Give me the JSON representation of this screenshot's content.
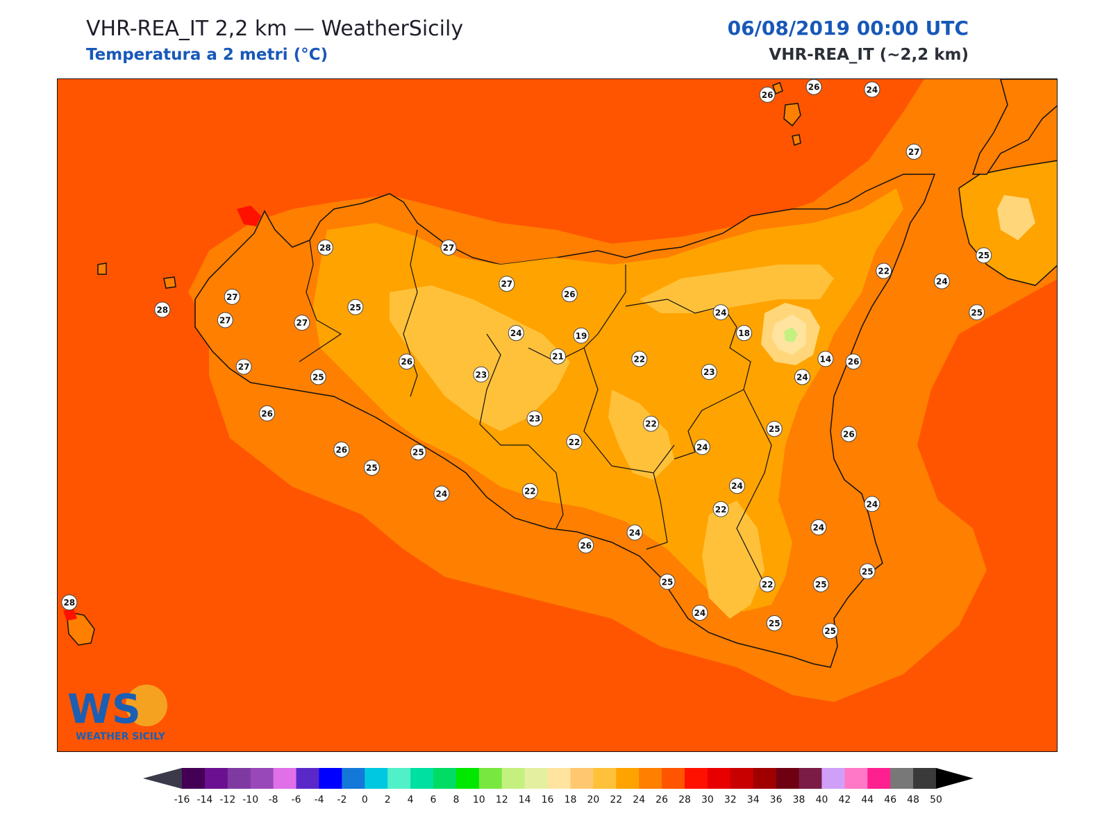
{
  "header": {
    "title": "VHR-REA_IT 2,2 km — WeatherSicily",
    "subtitle": "Temperatura a 2 metri (°C)",
    "datetime": "06/08/2019 00:00 UTC",
    "model": "VHR-REA_IT (~2,2 km)"
  },
  "logo": {
    "letters": "WS",
    "caption": "WEATHER SICILY"
  },
  "colors": {
    "sea": "#ff5500",
    "land_base": "#ff7f00",
    "t22_24": "#ffa300",
    "t20_22": "#ffc13a",
    "t18_20": "#ffd77a",
    "t16_18": "#ffe4a0",
    "hot_spots": "#ff1100",
    "border": "#111111"
  },
  "stations": [
    {
      "v": "26",
      "lon": 14.95,
      "lat": 38.79
    },
    {
      "v": "26",
      "lon": 15.15,
      "lat": 38.82
    },
    {
      "v": "24",
      "lon": 15.4,
      "lat": 38.81
    },
    {
      "v": "27",
      "lon": 15.58,
      "lat": 38.57
    },
    {
      "v": "28",
      "lon": 13.05,
      "lat": 38.2
    },
    {
      "v": "27",
      "lon": 13.58,
      "lat": 38.2
    },
    {
      "v": "27",
      "lon": 13.83,
      "lat": 38.06
    },
    {
      "v": "26",
      "lon": 14.1,
      "lat": 38.02
    },
    {
      "v": "24",
      "lon": 14.75,
      "lat": 37.95
    },
    {
      "v": "22",
      "lon": 15.45,
      "lat": 38.11
    },
    {
      "v": "24",
      "lon": 15.7,
      "lat": 38.07
    },
    {
      "v": "25",
      "lon": 15.88,
      "lat": 38.17
    },
    {
      "v": "25",
      "lon": 15.85,
      "lat": 37.95
    },
    {
      "v": "28",
      "lon": 12.35,
      "lat": 37.96
    },
    {
      "v": "27",
      "lon": 12.65,
      "lat": 38.01
    },
    {
      "v": "27",
      "lon": 12.62,
      "lat": 37.92
    },
    {
      "v": "27",
      "lon": 12.95,
      "lat": 37.91
    },
    {
      "v": "25",
      "lon": 13.18,
      "lat": 37.97
    },
    {
      "v": "24",
      "lon": 13.87,
      "lat": 37.87
    },
    {
      "v": "19",
      "lon": 14.15,
      "lat": 37.86
    },
    {
      "v": "18",
      "lon": 14.85,
      "lat": 37.87
    },
    {
      "v": "27",
      "lon": 12.7,
      "lat": 37.74
    },
    {
      "v": "25",
      "lon": 13.02,
      "lat": 37.7
    },
    {
      "v": "26",
      "lon": 13.4,
      "lat": 37.76
    },
    {
      "v": "23",
      "lon": 13.72,
      "lat": 37.71
    },
    {
      "v": "21",
      "lon": 14.05,
      "lat": 37.78
    },
    {
      "v": "22",
      "lon": 14.4,
      "lat": 37.77
    },
    {
      "v": "23",
      "lon": 14.7,
      "lat": 37.72
    },
    {
      "v": "14",
      "lon": 15.2,
      "lat": 37.77
    },
    {
      "v": "24",
      "lon": 15.1,
      "lat": 37.7
    },
    {
      "v": "26",
      "lon": 15.32,
      "lat": 37.76
    },
    {
      "v": "26",
      "lon": 12.8,
      "lat": 37.56
    },
    {
      "v": "26",
      "lon": 13.12,
      "lat": 37.42
    },
    {
      "v": "25",
      "lon": 13.45,
      "lat": 37.41
    },
    {
      "v": "25",
      "lon": 13.25,
      "lat": 37.35
    },
    {
      "v": "23",
      "lon": 13.95,
      "lat": 37.54
    },
    {
      "v": "22",
      "lon": 14.12,
      "lat": 37.45
    },
    {
      "v": "22",
      "lon": 14.45,
      "lat": 37.52
    },
    {
      "v": "25",
      "lon": 14.98,
      "lat": 37.5
    },
    {
      "v": "24",
      "lon": 14.67,
      "lat": 37.43
    },
    {
      "v": "26",
      "lon": 15.3,
      "lat": 37.48
    },
    {
      "v": "24",
      "lon": 13.55,
      "lat": 37.25
    },
    {
      "v": "22",
      "lon": 13.93,
      "lat": 37.26
    },
    {
      "v": "24",
      "lon": 14.82,
      "lat": 37.28
    },
    {
      "v": "24",
      "lon": 15.4,
      "lat": 37.21
    },
    {
      "v": "22",
      "lon": 14.75,
      "lat": 37.19
    },
    {
      "v": "24",
      "lon": 14.38,
      "lat": 37.1
    },
    {
      "v": "24",
      "lon": 15.17,
      "lat": 37.12
    },
    {
      "v": "26",
      "lon": 14.17,
      "lat": 37.05
    },
    {
      "v": "25",
      "lon": 15.38,
      "lat": 36.95
    },
    {
      "v": "25",
      "lon": 14.52,
      "lat": 36.91
    },
    {
      "v": "22",
      "lon": 14.95,
      "lat": 36.9
    },
    {
      "v": "25",
      "lon": 15.18,
      "lat": 36.9
    },
    {
      "v": "24",
      "lon": 14.66,
      "lat": 36.79
    },
    {
      "v": "25",
      "lon": 14.98,
      "lat": 36.75
    },
    {
      "v": "25",
      "lon": 15.22,
      "lat": 36.72
    },
    {
      "v": "28",
      "lon": 11.95,
      "lat": 36.83
    }
  ],
  "colorbar": {
    "colors": [
      "#440055",
      "#6a1090",
      "#7e3aa0",
      "#9848b8",
      "#e070e8",
      "#5a28c8",
      "#0000ff",
      "#1478d8",
      "#00c8e0",
      "#50f0c8",
      "#00e0a0",
      "#00dc64",
      "#00e800",
      "#78e840",
      "#c4f080",
      "#e4f0a0",
      "#ffe4a0",
      "#ffc870",
      "#ffc13a",
      "#ffa300",
      "#ff7f00",
      "#ff5500",
      "#ff1100",
      "#e80000",
      "#c80000",
      "#a00000",
      "#6e0012",
      "#7a1c46",
      "#d0a0f8",
      "#ff78c8",
      "#ff2090",
      "#787878",
      "#3a3a3a"
    ],
    "ticks": [
      "-16",
      "-14",
      "-12",
      "-10",
      "-8",
      "-6",
      "-4",
      "-2",
      "0",
      "2",
      "4",
      "6",
      "8",
      "10",
      "12",
      "14",
      "16",
      "18",
      "20",
      "22",
      "24",
      "26",
      "28",
      "30",
      "32",
      "34",
      "36",
      "38",
      "40",
      "42",
      "44",
      "46",
      "48",
      "50"
    ]
  }
}
